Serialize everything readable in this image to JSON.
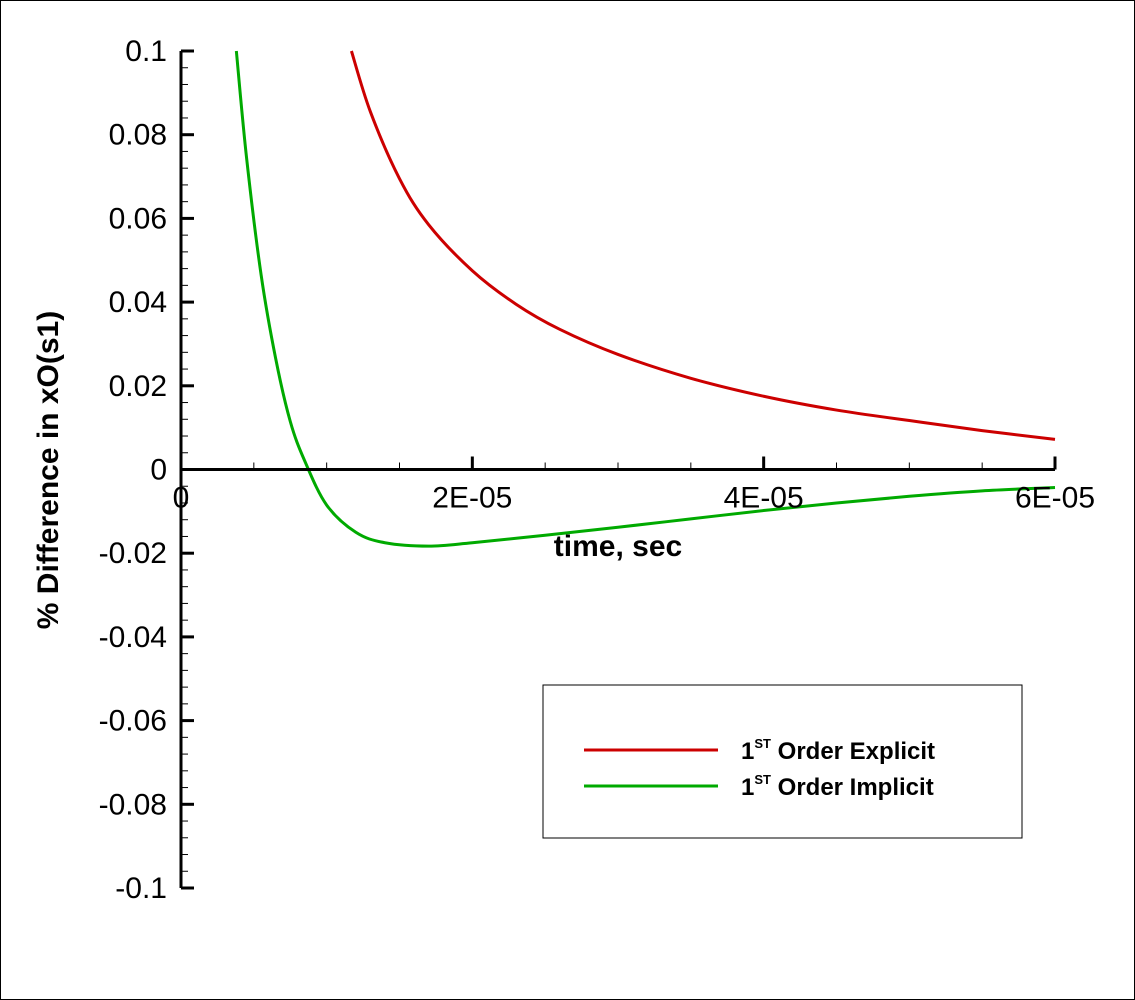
{
  "chart_data": {
    "type": "line",
    "xlabel": "time, sec",
    "ylabel": "% Difference in xO(s1)",
    "xlim": [
      0,
      6e-05
    ],
    "ylim": [
      -0.1,
      0.1
    ],
    "x_ticks": [
      {
        "value": 0,
        "label": "0"
      },
      {
        "value": 2e-05,
        "label": "2E-05"
      },
      {
        "value": 4e-05,
        "label": "4E-05"
      },
      {
        "value": 6e-05,
        "label": "6E-05"
      }
    ],
    "y_ticks": [
      {
        "value": 0.1,
        "label": "0.1"
      },
      {
        "value": 0.08,
        "label": "0.08"
      },
      {
        "value": 0.06,
        "label": "0.06"
      },
      {
        "value": 0.04,
        "label": "0.04"
      },
      {
        "value": 0.02,
        "label": "0.02"
      },
      {
        "value": 0,
        "label": "0"
      },
      {
        "value": -0.02,
        "label": "-0.02"
      },
      {
        "value": -0.04,
        "label": "-0.04"
      },
      {
        "value": -0.06,
        "label": "-0.06"
      },
      {
        "value": -0.08,
        "label": "-0.08"
      },
      {
        "value": -0.1,
        "label": "-0.1"
      }
    ],
    "grid": false,
    "legend_position": "bottom-right",
    "series": [
      {
        "legend_prefix": "1",
        "legend_sup": "ST",
        "legend_suffix": " Order Explicit",
        "color": "#cc0000",
        "x": [
          1.17e-05,
          1.3e-05,
          1.5e-05,
          1.7e-05,
          2e-05,
          2.3e-05,
          2.6e-05,
          3e-05,
          3.5e-05,
          4e-05,
          4.5e-05,
          5e-05,
          5.5e-05,
          6e-05
        ],
        "y": [
          0.1,
          0.0855,
          0.0695,
          0.0585,
          0.0475,
          0.0395,
          0.0335,
          0.0275,
          0.0218,
          0.0175,
          0.0142,
          0.0117,
          0.0093,
          0.0072
        ]
      },
      {
        "legend_prefix": "1",
        "legend_sup": "ST",
        "legend_suffix": " Order Implicit",
        "color": "#00aa00",
        "x": [
          3.8e-06,
          4.5e-06,
          5.5e-06,
          6.5e-06,
          7.5e-06,
          8.5e-06,
          1e-05,
          1.2e-05,
          1.4e-05,
          1.7e-05,
          2e-05,
          2.5e-05,
          3e-05,
          3.5e-05,
          4e-05,
          4.5e-05,
          5e-05,
          5.5e-05,
          6e-05
        ],
        "y": [
          0.1,
          0.0745,
          0.0465,
          0.0265,
          0.0115,
          0.002,
          -0.0085,
          -0.015,
          -0.0175,
          -0.0183,
          -0.0175,
          -0.0157,
          -0.0138,
          -0.0118,
          -0.0098,
          -0.008,
          -0.0064,
          -0.0051,
          -0.0043
        ]
      }
    ]
  }
}
